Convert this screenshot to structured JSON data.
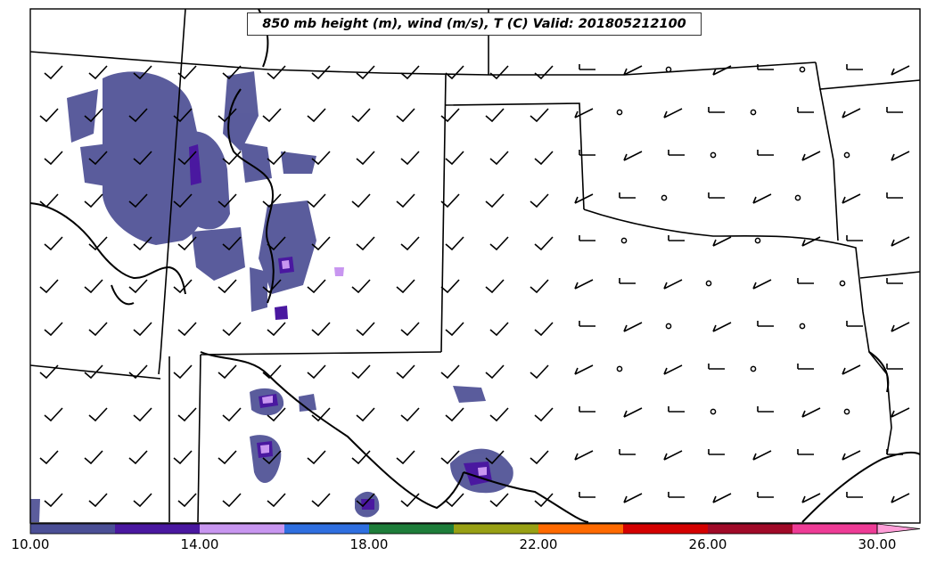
{
  "title": "850 mb height (m), wind (m/s), T (C) Valid: 201805212100",
  "colorbar": {
    "ticks": [
      "10.00",
      "14.00",
      "18.00",
      "22.00",
      "26.00",
      "30.00"
    ],
    "colors": [
      "#4b4f96",
      "#4a18a0",
      "#c896f0",
      "#2f6fe0",
      "#1e7d3a",
      "#98a014",
      "#ff6a00",
      "#d40000",
      "#a00a28",
      "#ee3c96",
      "#ff9ed8"
    ]
  },
  "colors": {
    "frame": "#000000",
    "fill_dark": "#4d4f94",
    "fill_purple": "#4a18a0",
    "fill_light": "#c896f0"
  }
}
